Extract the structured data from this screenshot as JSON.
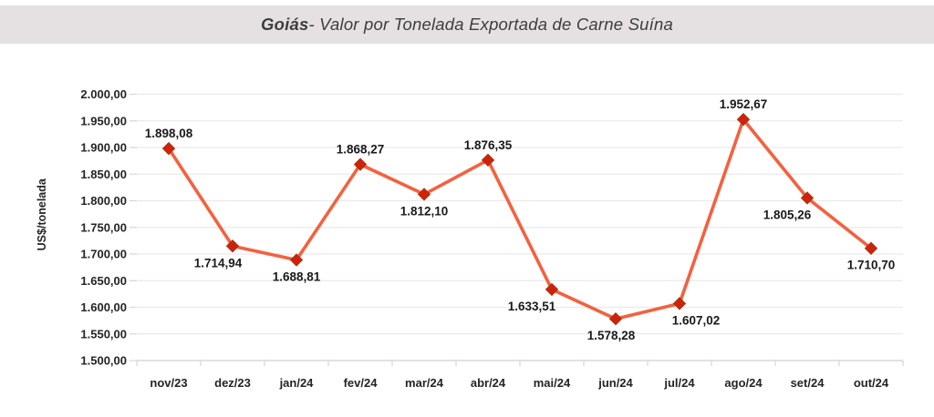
{
  "header": {
    "title_emphasis": "Goiás",
    "title_rest": " - Valor por Tonelada Exportada de Carne Suína"
  },
  "chart_data": {
    "type": "line",
    "title": "Goiás - Valor por Tonelada Exportada de Carne Suína",
    "ylabel": "US$/tonelada",
    "xlabel": "",
    "categories": [
      "nov/23",
      "dez/23",
      "jan/24",
      "fev/24",
      "mar/24",
      "abr/24",
      "mai/24",
      "jun/24",
      "jul/24",
      "ago/24",
      "set/24",
      "out/24"
    ],
    "values": [
      1898.08,
      1714.94,
      1688.81,
      1868.27,
      1812.1,
      1876.35,
      1633.51,
      1578.28,
      1607.02,
      1952.67,
      1805.26,
      1710.7
    ],
    "point_labels": [
      "1.898,08",
      "1.714,94",
      "1.688,81",
      "1.868,27",
      "1.812,10",
      "1.876,35",
      "1.633,51",
      "1.578,28",
      "1.607,02",
      "1.952,67",
      "1.805,26",
      "1.710,70"
    ],
    "label_side": [
      "above",
      "below",
      "below",
      "above",
      "below",
      "above",
      "below",
      "below",
      "below",
      "above",
      "below",
      "below"
    ],
    "label_dx": [
      0,
      -16,
      0,
      0,
      0,
      0,
      -22,
      -5,
      18,
      0,
      -22,
      0
    ],
    "ylim": [
      1500,
      2000
    ],
    "ytick_step": 50,
    "ytick_labels_top_down": [
      "2.000,00",
      "1.950,00",
      "1.900,00",
      "1.850,00",
      "1.800,00",
      "1.750,00",
      "1.700,00",
      "1.650,00",
      "1.600,00",
      "1.550,00",
      "1.500,00"
    ],
    "grid": true,
    "legend": "none",
    "marker": "diamond",
    "colors": {
      "line": "#f4613f",
      "marker_fill": "#d2200c",
      "marker_stroke": "#a03a12",
      "point_label": "#1a1a1a",
      "axis_label": "#242424",
      "grid": "#eaeaea",
      "axis": "#d9d9d9",
      "header_bg": "#e5e0e1",
      "title": "#3d3d3d",
      "background": "#ffffff"
    }
  }
}
